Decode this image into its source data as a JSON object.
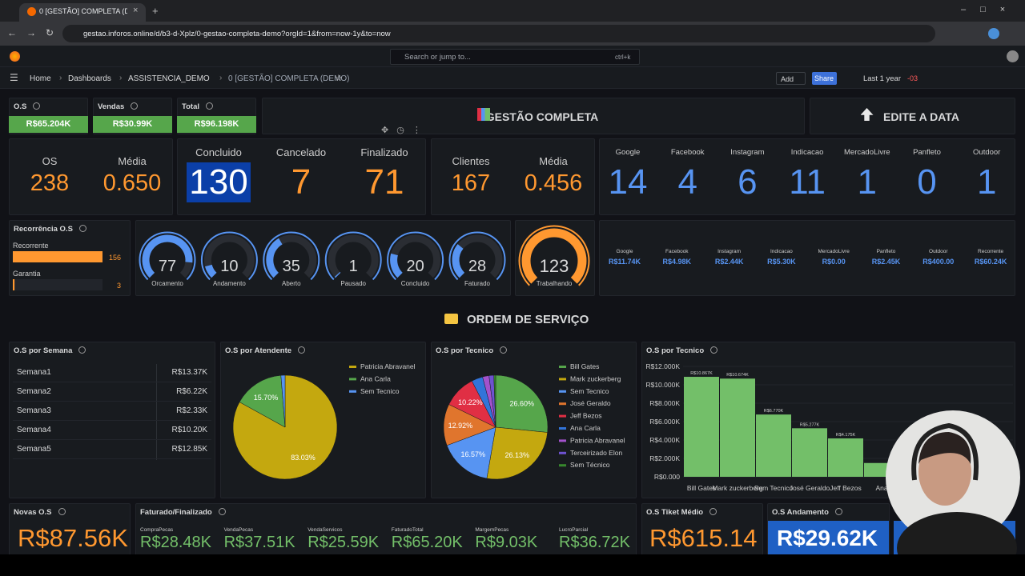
{
  "browser": {
    "tab_title": "0 [GESTÃO] COMPLETA (DEMO)",
    "url": "gestao.inforos.online/d/b3-d-Xplz/0-gestao-completa-demo?orgId=1&from=now-1y&to=now"
  },
  "topbar": {
    "search": "Search or jump to...",
    "shortcut": "ctrl+k"
  },
  "breadcrumb": [
    "Home",
    "Dashboards",
    "ASSISTENCIA_DEMO",
    "0 [GESTÃO] COMPLETA (DEMO)"
  ],
  "toolbar": {
    "add": "Add",
    "share": "Share",
    "time_range": "Last 1 year",
    "timezone": "-03"
  },
  "summary": [
    {
      "title": "O.S",
      "value": "R$65.204K"
    },
    {
      "title": "Vendas",
      "value": "R$30.99K"
    },
    {
      "title": "Total",
      "value": "R$96.198K"
    }
  ],
  "banners": [
    "GESTÃO COMPLETA",
    "EDITE A DATA"
  ],
  "stats_os": [
    {
      "label": "OS",
      "value": 238
    },
    {
      "label": "Média",
      "value": "0.650"
    }
  ],
  "status": [
    {
      "label": "Concluido",
      "value": 130
    },
    {
      "label": "Cancelado",
      "value": 7
    },
    {
      "label": "Finalizado",
      "value": 71
    }
  ],
  "clientes": [
    {
      "label": "Clientes",
      "value": 167
    },
    {
      "label": "Média",
      "value": "0.456"
    }
  ],
  "origem": [
    {
      "label": "Google",
      "value": 14
    },
    {
      "label": "Facebook",
      "value": 4
    },
    {
      "label": "Instagram",
      "value": 6
    },
    {
      "label": "Indicacao",
      "value": 11
    },
    {
      "label": "MercadoLivre",
      "value": 1
    },
    {
      "label": "Panfleto",
      "value": 0
    },
    {
      "label": "Outdoor",
      "value": 1
    }
  ],
  "recorrencia": {
    "title": "Recorrência O.S",
    "max": 156,
    "items": [
      {
        "label": "Recorrente",
        "value": 156
      },
      {
        "label": "Garantia",
        "value": 3
      }
    ]
  },
  "gauges": {
    "max": 90,
    "items": [
      {
        "label": "Orcamento",
        "value": 77
      },
      {
        "label": "Andamento",
        "value": 10
      },
      {
        "label": "Aberto",
        "value": 35
      },
      {
        "label": "Pausado",
        "value": 1
      },
      {
        "label": "Concluido",
        "value": 20
      },
      {
        "label": "Faturado",
        "value": 28
      }
    ]
  },
  "trabalhando": {
    "label": "Trabalhando",
    "value": 123,
    "max": 123
  },
  "origem_valor": [
    {
      "label": "Google",
      "value": "R$11.74K"
    },
    {
      "label": "Facebook",
      "value": "R$4.98K"
    },
    {
      "label": "Instagram",
      "value": "R$2.44K"
    },
    {
      "label": "Indicacao",
      "value": "R$5.30K"
    },
    {
      "label": "MercadoLivre",
      "value": "R$0.00"
    },
    {
      "label": "Panfleto",
      "value": "R$2.45K"
    },
    {
      "label": "Outdoor",
      "value": "R$400.00"
    },
    {
      "label": "Recorrente",
      "value": "R$60.24K"
    }
  ],
  "section": "ORDEM DE SERVIÇO",
  "semana": {
    "title": "O.S por Semana",
    "rows": [
      [
        "Semana1",
        "R$13.37K"
      ],
      [
        "Semana2",
        "R$6.22K"
      ],
      [
        "Semana3",
        "R$2.33K"
      ],
      [
        "Semana4",
        "R$10.20K"
      ],
      [
        "Semana5",
        "R$12.85K"
      ]
    ]
  },
  "atendente": {
    "type": "pie",
    "title": "O.S por Atendente",
    "labels": [
      "Patricia Abravanel",
      "Ana Carla",
      "Sem Tecnico"
    ],
    "values": [
      83.03,
      15.7,
      1.27
    ],
    "value_labels": [
      "83.03%",
      "15.70%",
      null
    ],
    "colors": [
      "#c4a80f",
      "#56a64b",
      "#5794f2"
    ]
  },
  "tecnico_pie": {
    "type": "pie",
    "title": "O.S por Tecnico",
    "labels": [
      "Bill Gates",
      "Mark zuckerberg",
      "Sem Tecnico",
      "José Geraldo",
      "Jeff Bezos",
      "Ana Carla",
      "Patricia Abravanel",
      "Terceirizado Elon",
      "Sem Técnico"
    ],
    "values": [
      26.6,
      26.13,
      16.57,
      12.92,
      10.22,
      3.5,
      2.0,
      1.5,
      0.56
    ],
    "value_labels": [
      "26.60%",
      "26.13%",
      "16.57%",
      "12.92%",
      "10.22%",
      null,
      null,
      null,
      null
    ],
    "colors": [
      "#56a64b",
      "#c4a80f",
      "#5794f2",
      "#e0752d",
      "#e02f44",
      "#3274d9",
      "#a352cc",
      "#6e52d0",
      "#37872d"
    ]
  },
  "tecnico_bar": {
    "type": "bar",
    "title": "O.S por Tecnico",
    "categories": [
      "Bill Gates",
      "Mark zuckerberg",
      "Sem Tecnico",
      "José Geraldo",
      "Jeff Bezos",
      "Ana"
    ],
    "values": [
      10867,
      10674,
      6770,
      5277,
      4175,
      1500
    ],
    "value_labels": [
      "R$10.867K",
      "R$10.674K",
      "R$6.770K",
      "R$5.277K",
      "R$4.175K",
      null
    ],
    "color": "#73bf69",
    "ylim": [
      0,
      12000
    ],
    "yticks": [
      {
        "value": 0,
        "label": "R$0.000"
      },
      {
        "value": 2000,
        "label": "R$2.000K"
      },
      {
        "value": 4000,
        "label": "R$4.000K"
      },
      {
        "value": 6000,
        "label": "R$6.000K"
      },
      {
        "value": 8000,
        "label": "R$8.000K"
      },
      {
        "value": 10000,
        "label": "R$10.000K"
      },
      {
        "value": 12000,
        "label": "R$12.000K"
      }
    ]
  },
  "novas": {
    "title": "Novas O.S",
    "value": "R$87.56K"
  },
  "faturado": {
    "title": "Faturado/Finalizado",
    "items": [
      {
        "label": "CompraPecas",
        "value": "R$28.48K"
      },
      {
        "label": "VendaPecas",
        "value": "R$37.51K"
      },
      {
        "label": "VendaServicos",
        "value": "R$25.59K"
      },
      {
        "label": "FaturadoTotal",
        "value": "R$65.20K"
      },
      {
        "label": "MargemPecas",
        "value": "R$9.03K"
      },
      {
        "label": "LucroParcial",
        "value": "R$36.72K"
      }
    ]
  },
  "tiket": {
    "title": "O.S Tiket Médio",
    "value": "R$615.14"
  },
  "andamento": {
    "title": "O.S Andamento",
    "value": "R$29.62K"
  }
}
